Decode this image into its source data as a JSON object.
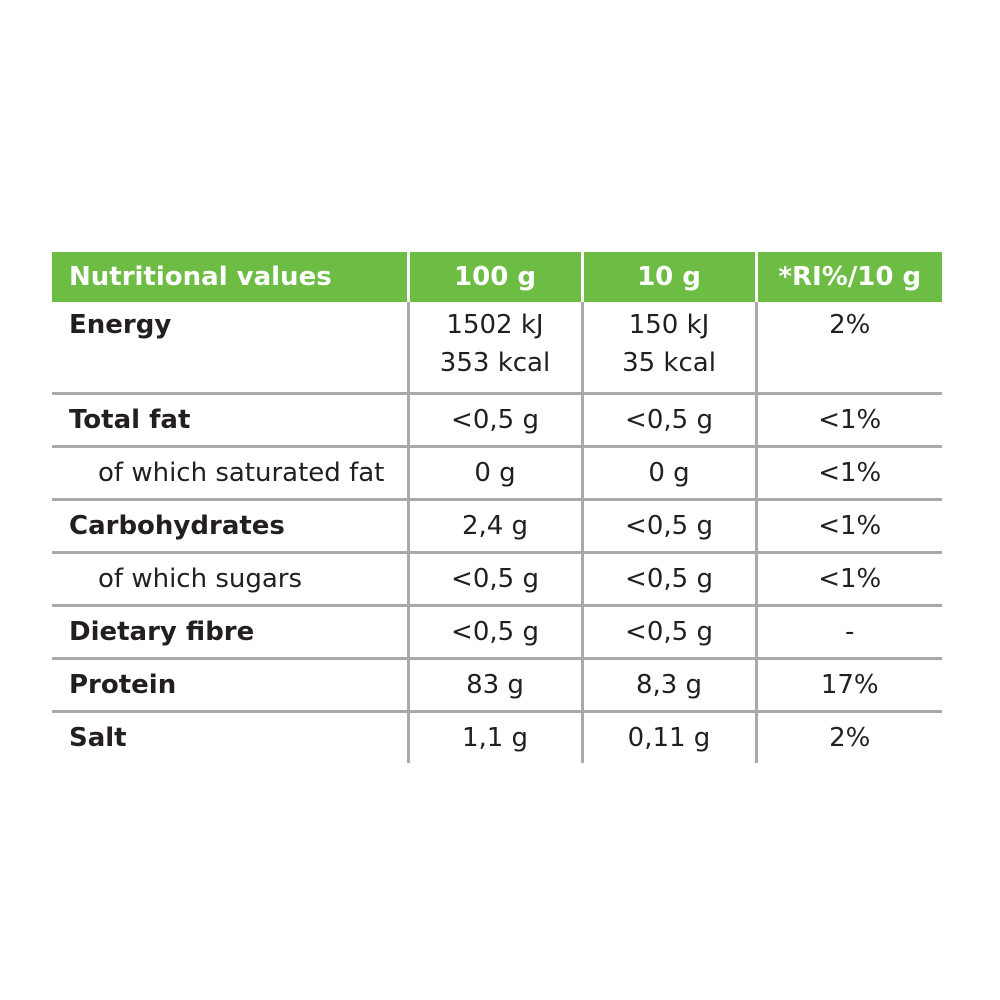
{
  "header": {
    "label": "Nutritional values",
    "col1": "100 g",
    "col2": "10 g",
    "col3": "*RI%/10 g"
  },
  "rows": [
    {
      "label": "Energy",
      "v100": [
        "1502 kJ",
        "353 kcal"
      ],
      "v10": [
        "150 kJ",
        "35 kcal"
      ],
      "ri": "2%"
    },
    {
      "label": "Total fat",
      "v100": "<0,5 g",
      "v10": "<0,5 g",
      "ri": "<1%"
    },
    {
      "label": "of which saturated fat",
      "v100": "0 g",
      "v10": "0 g",
      "ri": "<1%"
    },
    {
      "label": "Carbohydrates",
      "v100": "2,4 g",
      "v10": "<0,5 g",
      "ri": "<1%"
    },
    {
      "label": "of which sugars",
      "v100": "<0,5 g",
      "v10": "<0,5 g",
      "ri": "<1%"
    },
    {
      "label": "Dietary fibre",
      "v100": "<0,5 g",
      "v10": "<0,5 g",
      "ri": "-"
    },
    {
      "label": "Protein",
      "v100": "83 g",
      "v10": "8,3 g",
      "ri": "17%"
    },
    {
      "label": "Salt",
      "v100": "1,1 g",
      "v10": "0,11 g",
      "ri": "2%"
    }
  ],
  "colors": {
    "header_bg": "#6dbd45",
    "header_text": "#ffffff",
    "rule": "#a7a9ac",
    "text": "#231f20"
  }
}
